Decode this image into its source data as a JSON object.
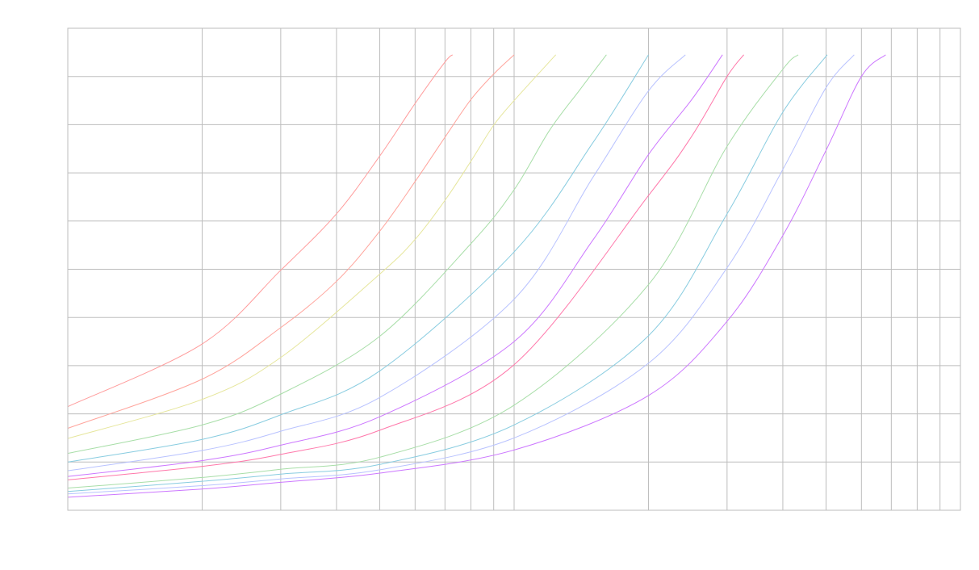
{
  "chart_data": {
    "type": "line",
    "title": "",
    "xlabel": "",
    "ylabel": "",
    "x_scale": "log",
    "xlim": [
      1,
      100
    ],
    "ylim": [
      0,
      10
    ],
    "x_gridlines": [
      1,
      2,
      3,
      4,
      5,
      6,
      7,
      8,
      9,
      10,
      20,
      30,
      40,
      50,
      60,
      70,
      80,
      90,
      100
    ],
    "y_gridlines": [
      0,
      1,
      2,
      3,
      4,
      5,
      6,
      7,
      8,
      9,
      10
    ],
    "grid": true,
    "tick_labels_visible": false,
    "legend": "none",
    "grid_color": "#bdbdbd",
    "series": [
      {
        "color": "#ff9c9c",
        "points": [
          [
            1,
            2.15
          ],
          [
            2,
            3.45
          ],
          [
            3,
            4.98
          ],
          [
            4,
            6.15
          ],
          [
            5,
            7.35
          ],
          [
            6,
            8.44
          ],
          [
            7,
            9.3
          ],
          [
            7.28,
            9.45
          ]
        ]
      },
      {
        "color": "#ffa49c",
        "points": [
          [
            1,
            1.7
          ],
          [
            2,
            2.72
          ],
          [
            3,
            3.79
          ],
          [
            4,
            4.75
          ],
          [
            5,
            5.79
          ],
          [
            6,
            6.82
          ],
          [
            7,
            7.74
          ],
          [
            8,
            8.52
          ],
          [
            9,
            9.05
          ],
          [
            10,
            9.45
          ]
        ]
      },
      {
        "color": "#e6e69c",
        "points": [
          [
            1,
            1.49
          ],
          [
            2,
            2.3
          ],
          [
            3,
            3.17
          ],
          [
            5,
            4.9
          ],
          [
            6,
            5.62
          ],
          [
            7,
            6.43
          ],
          [
            8,
            7.24
          ],
          [
            9,
            7.99
          ],
          [
            10,
            8.5
          ],
          [
            12.4,
            9.45
          ]
        ]
      },
      {
        "color": "#a8dea8",
        "points": [
          [
            1,
            1.18
          ],
          [
            2,
            1.77
          ],
          [
            3,
            2.41
          ],
          [
            5,
            3.61
          ],
          [
            8,
            5.53
          ],
          [
            10,
            6.65
          ],
          [
            12,
            7.88
          ],
          [
            14,
            8.71
          ],
          [
            16.1,
            9.45
          ]
        ]
      },
      {
        "color": "#88cce0",
        "points": [
          [
            1,
            1.0
          ],
          [
            2,
            1.47
          ],
          [
            3,
            1.98
          ],
          [
            5,
            2.89
          ],
          [
            10,
            5.36
          ],
          [
            15,
            7.62
          ],
          [
            20,
            9.45
          ]
        ]
      },
      {
        "color": "#b8c2ff",
        "points": [
          [
            1,
            0.82
          ],
          [
            2,
            1.24
          ],
          [
            3,
            1.64
          ],
          [
            5,
            2.34
          ],
          [
            10,
            4.38
          ],
          [
            15,
            6.9
          ],
          [
            20,
            8.7
          ],
          [
            24.2,
            9.45
          ]
        ]
      },
      {
        "color": "#cc77ff",
        "points": [
          [
            1,
            0.7
          ],
          [
            2,
            1.03
          ],
          [
            3,
            1.35
          ],
          [
            5,
            1.94
          ],
          [
            10,
            3.5
          ],
          [
            15,
            5.6
          ],
          [
            20,
            7.38
          ],
          [
            25,
            8.52
          ],
          [
            29.3,
            9.45
          ]
        ]
      },
      {
        "color": "#ff77aa",
        "points": [
          [
            1,
            0.63
          ],
          [
            2,
            0.91
          ],
          [
            3,
            1.16
          ],
          [
            5,
            1.66
          ],
          [
            10,
            3.02
          ],
          [
            20,
            6.53
          ],
          [
            25,
            7.76
          ],
          [
            30,
            9.0
          ],
          [
            32.7,
            9.45
          ]
        ]
      },
      {
        "color": "#a8dea8",
        "points": [
          [
            1,
            0.46
          ],
          [
            2,
            0.68
          ],
          [
            3,
            0.85
          ],
          [
            5,
            1.1
          ],
          [
            10,
            2.18
          ],
          [
            20,
            4.68
          ],
          [
            30,
            7.55
          ],
          [
            40,
            9.15
          ],
          [
            43.3,
            9.45
          ]
        ]
      },
      {
        "color": "#88cce0",
        "points": [
          [
            1,
            0.39
          ],
          [
            2,
            0.6
          ],
          [
            3,
            0.75
          ],
          [
            5,
            0.95
          ],
          [
            10,
            1.77
          ],
          [
            20,
            3.62
          ],
          [
            30,
            6.15
          ],
          [
            40,
            8.26
          ],
          [
            50.3,
            9.45
          ]
        ]
      },
      {
        "color": "#b8c2ff",
        "points": [
          [
            1,
            0.34
          ],
          [
            2,
            0.51
          ],
          [
            3,
            0.65
          ],
          [
            5,
            0.84
          ],
          [
            10,
            1.5
          ],
          [
            20,
            3.05
          ],
          [
            30,
            5.03
          ],
          [
            40,
            7.07
          ],
          [
            50,
            8.77
          ],
          [
            57.8,
            9.45
          ]
        ]
      },
      {
        "color": "#cc77ff",
        "points": [
          [
            1,
            0.27
          ],
          [
            2,
            0.44
          ],
          [
            3,
            0.58
          ],
          [
            5,
            0.77
          ],
          [
            10,
            1.25
          ],
          [
            20,
            2.38
          ],
          [
            30,
            3.92
          ],
          [
            40,
            5.7
          ],
          [
            50,
            7.47
          ],
          [
            60,
            9.0
          ],
          [
            68,
            9.45
          ]
        ]
      }
    ]
  }
}
